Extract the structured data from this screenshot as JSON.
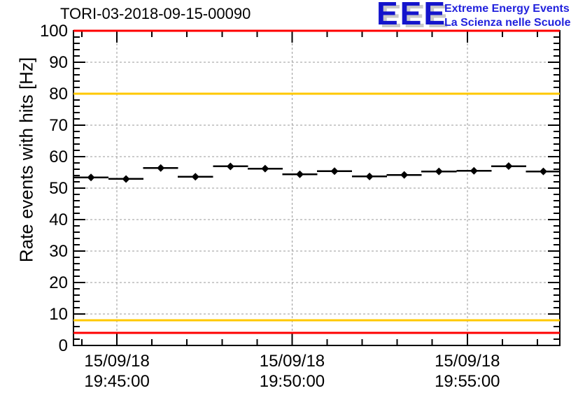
{
  "header": {
    "title": "TORI-03-2018-09-15-00090",
    "logo": {
      "text": "EEE",
      "tagline1": "Extreme Energy Events",
      "tagline2": "La Scienza nelle Scuole",
      "logo_color": "#1414cc",
      "logo_shadow_color": "#c9c9c9",
      "tagline_color": "#2222dd"
    }
  },
  "chart_data": {
    "type": "scatter",
    "title": "TORI-03-2018-09-15-00090",
    "xlabel": "",
    "ylabel": "Rate events with hits [Hz]",
    "ylim": [
      0,
      100
    ],
    "y_major_step": 10,
    "y_minor_step": 2,
    "xlim_minutes_from_1945": [
      -1.24,
      12.64
    ],
    "x_minor_step_minutes": 1,
    "grid": true,
    "grid_color": "#999999",
    "x_ticks": [
      {
        "t": 0,
        "date": "15/09/18",
        "time": "19:45:00"
      },
      {
        "t": 5,
        "date": "15/09/18",
        "time": "19:50:00"
      },
      {
        "t": 10,
        "date": "15/09/18",
        "time": "19:55:00"
      }
    ],
    "thresholds": [
      {
        "name": "upper-alarm",
        "value": 100,
        "color": "#ff0000"
      },
      {
        "name": "upper-warning",
        "value": 80,
        "color": "#ffc800"
      },
      {
        "name": "lower-warning",
        "value": 8,
        "color": "#ffc800"
      },
      {
        "name": "lower-alarm",
        "value": 4,
        "color": "#ff0000"
      }
    ],
    "series": [
      {
        "name": "rate-events-with-hits",
        "marker": "diamond",
        "color": "#000000",
        "x_minutes": [
          -0.74,
          0.26,
          1.25,
          2.24,
          3.24,
          4.23,
          5.22,
          6.21,
          7.21,
          8.2,
          9.19,
          10.19,
          11.18,
          12.17
        ],
        "y": [
          53.4,
          52.9,
          56.4,
          53.6,
          56.9,
          56.2,
          54.4,
          55.4,
          53.7,
          54.2,
          55.3,
          55.5,
          57.0,
          55.3
        ],
        "xerr_minutes": 0.5,
        "yerr": 0.9
      }
    ]
  }
}
